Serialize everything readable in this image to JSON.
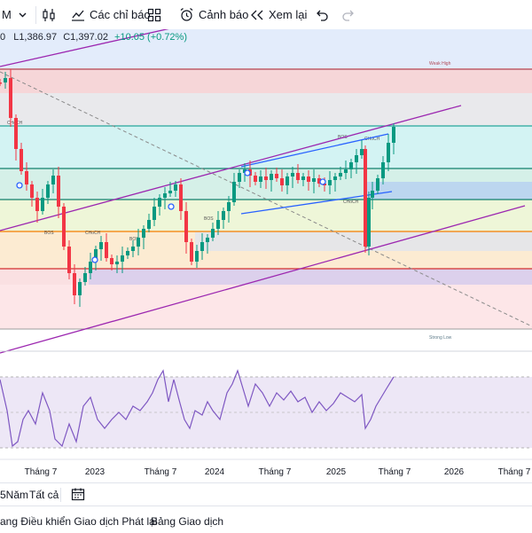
{
  "toolbar": {
    "interval": "M",
    "indicators_label": "Các chỉ báo",
    "alerts_label": "Cảnh báo",
    "replay_label": "Xem lại"
  },
  "legend": {
    "open_prefix": "0",
    "low_label": "L",
    "low_value": "1,386.97",
    "close_label": "C",
    "close_value": "1,397.02",
    "change": "+10.05 (+0.72%)"
  },
  "zones": {
    "weak_high": "Weak High",
    "strong_low": "Strong Low",
    "bos": "BOS",
    "choch": "CHoCH"
  },
  "time_axis": {
    "labels": [
      "Tháng 7",
      "2023",
      "Tháng 7",
      "2024",
      "Tháng 7",
      "2025",
      "Tháng 7",
      "2026",
      "Tháng 7"
    ]
  },
  "bottom_bar": {
    "range_label": "5Năm",
    "all_label": "Tất cả"
  },
  "footer": {
    "tab_panel": "ang Điều khiển Giao dịch Phát lại",
    "tab_trading": "Bảng Giao dịch"
  },
  "colors": {
    "up": "#089981",
    "down": "#f23645",
    "channel": "#9c27b0",
    "rsi": "#7e57c2",
    "wedge": "#2962ff"
  }
}
